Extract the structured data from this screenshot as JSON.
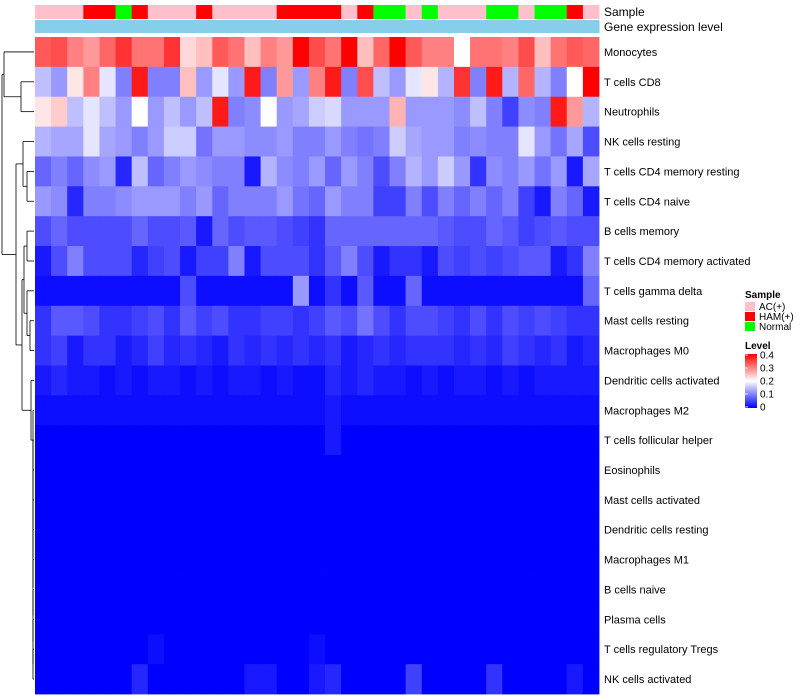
{
  "chart_data": {
    "type": "heatmap",
    "title": "",
    "rows": [
      "Monocytes",
      "T cells CD8",
      "Neutrophils",
      "NK cells resting",
      "T cells CD4 memory resting",
      "T cells CD4 naive",
      "B cells memory",
      "T cells CD4 memory activated",
      "T cells gamma delta",
      "Mast cells resting",
      "Macrophages M0",
      "Dendritic cells activated",
      "Macrophages M2",
      "T cells follicular helper",
      "Eosinophils",
      "Mast cells activated",
      "Dendritic cells resting",
      "Macrophages M1",
      "B cells naive",
      "Plasma cells",
      "T cells regulatory  Tregs",
      "NK cells activated"
    ],
    "column_annotation": {
      "sample_label": "Sample",
      "expression_label": "Gene expression level",
      "groups": [
        "AC(+)",
        "AC(+)",
        "AC(+)",
        "HAM(+)",
        "HAM(+)",
        "Normal",
        "HAM(+)",
        "AC(+)",
        "AC(+)",
        "AC(+)",
        "HAM(+)",
        "AC(+)",
        "AC(+)",
        "AC(+)",
        "AC(+)",
        "HAM(+)",
        "HAM(+)",
        "HAM(+)",
        "HAM(+)",
        "AC(+)",
        "HAM(+)",
        "Normal",
        "Normal",
        "AC(+)",
        "Normal",
        "AC(+)",
        "AC(+)",
        "AC(+)",
        "Normal",
        "Normal",
        "AC(+)",
        "Normal",
        "Normal",
        "HAM(+)",
        "AC(+)"
      ]
    },
    "values": [
      [
        0.33,
        0.34,
        0.3,
        0.28,
        0.32,
        0.36,
        0.31,
        0.31,
        0.36,
        0.23,
        0.25,
        0.33,
        0.31,
        0.25,
        0.3,
        0.28,
        0.4,
        0.34,
        0.31,
        0.4,
        0.25,
        0.32,
        0.4,
        0.33,
        0.3,
        0.3,
        0.2,
        0.31,
        0.31,
        0.3,
        0.34,
        0.25,
        0.31,
        0.33,
        0.32
      ],
      [
        0.15,
        0.12,
        0.22,
        0.3,
        0.18,
        0.1,
        0.38,
        0.1,
        0.1,
        0.25,
        0.12,
        0.18,
        0.12,
        0.38,
        0.1,
        0.28,
        0.12,
        0.3,
        0.38,
        0.1,
        0.34,
        0.15,
        0.12,
        0.18,
        0.22,
        0.14,
        0.36,
        0.1,
        0.38,
        0.14,
        0.32,
        0.14,
        0.1,
        0.2,
        0.4
      ],
      [
        0.22,
        0.24,
        0.15,
        0.18,
        0.15,
        0.12,
        0.2,
        0.12,
        0.15,
        0.12,
        0.15,
        0.38,
        0.1,
        0.11,
        0.2,
        0.12,
        0.13,
        0.16,
        0.17,
        0.12,
        0.12,
        0.12,
        0.26,
        0.12,
        0.12,
        0.12,
        0.11,
        0.15,
        0.1,
        0.05,
        0.11,
        0.1,
        0.38,
        0.28,
        0.14
      ],
      [
        0.14,
        0.13,
        0.13,
        0.18,
        0.13,
        0.12,
        0.1,
        0.12,
        0.16,
        0.16,
        0.09,
        0.12,
        0.12,
        0.11,
        0.11,
        0.12,
        0.1,
        0.1,
        0.12,
        0.1,
        0.09,
        0.1,
        0.16,
        0.13,
        0.12,
        0.12,
        0.1,
        0.11,
        0.1,
        0.1,
        0.18,
        0.12,
        0.09,
        0.13,
        0.06
      ],
      [
        0.08,
        0.1,
        0.08,
        0.11,
        0.12,
        0.03,
        0.15,
        0.08,
        0.1,
        0.12,
        0.11,
        0.1,
        0.1,
        0.02,
        0.14,
        0.11,
        0.1,
        0.12,
        0.08,
        0.12,
        0.1,
        0.06,
        0.1,
        0.14,
        0.12,
        0.16,
        0.12,
        0.04,
        0.11,
        0.1,
        0.12,
        0.09,
        0.12,
        0.02,
        0.13
      ],
      [
        0.12,
        0.11,
        0.03,
        0.1,
        0.1,
        0.11,
        0.12,
        0.12,
        0.12,
        0.1,
        0.12,
        0.08,
        0.1,
        0.1,
        0.1,
        0.12,
        0.09,
        0.08,
        0.12,
        0.1,
        0.1,
        0.05,
        0.05,
        0.1,
        0.06,
        0.1,
        0.08,
        0.1,
        0.08,
        0.1,
        0.05,
        0.02,
        0.1,
        0.08,
        0.02
      ],
      [
        0.06,
        0.08,
        0.06,
        0.06,
        0.06,
        0.06,
        0.08,
        0.06,
        0.06,
        0.07,
        0.02,
        0.08,
        0.06,
        0.07,
        0.07,
        0.06,
        0.05,
        0.04,
        0.08,
        0.08,
        0.08,
        0.08,
        0.08,
        0.08,
        0.08,
        0.07,
        0.06,
        0.06,
        0.08,
        0.07,
        0.05,
        0.06,
        0.07,
        0.06,
        0.06
      ],
      [
        0.02,
        0.06,
        0.1,
        0.06,
        0.06,
        0.06,
        0.03,
        0.05,
        0.06,
        0.02,
        0.05,
        0.05,
        0.1,
        0.02,
        0.06,
        0.06,
        0.06,
        0.04,
        0.07,
        0.1,
        0.06,
        0.02,
        0.04,
        0.04,
        0.02,
        0.06,
        0.05,
        0.06,
        0.05,
        0.06,
        0.07,
        0.07,
        0.02,
        0.04,
        0.1
      ],
      [
        0.01,
        0.01,
        0.01,
        0.01,
        0.01,
        0.01,
        0.01,
        0.01,
        0.01,
        0.06,
        0.01,
        0.01,
        0.01,
        0.01,
        0.01,
        0.01,
        0.12,
        0.01,
        0.04,
        0.01,
        0.07,
        0.01,
        0.01,
        0.08,
        0.01,
        0.01,
        0.01,
        0.01,
        0.01,
        0.01,
        0.01,
        0.01,
        0.01,
        0.01,
        0.08
      ],
      [
        0.04,
        0.07,
        0.07,
        0.06,
        0.04,
        0.04,
        0.05,
        0.06,
        0.04,
        0.07,
        0.05,
        0.06,
        0.04,
        0.04,
        0.05,
        0.05,
        0.04,
        0.05,
        0.07,
        0.06,
        0.09,
        0.06,
        0.04,
        0.06,
        0.06,
        0.05,
        0.04,
        0.06,
        0.04,
        0.06,
        0.05,
        0.06,
        0.05,
        0.04,
        0.04
      ],
      [
        0.04,
        0.05,
        0.02,
        0.04,
        0.04,
        0.02,
        0.03,
        0.05,
        0.03,
        0.04,
        0.03,
        0.02,
        0.04,
        0.03,
        0.04,
        0.03,
        0.04,
        0.03,
        0.04,
        0.02,
        0.03,
        0.04,
        0.03,
        0.04,
        0.04,
        0.04,
        0.03,
        0.04,
        0.03,
        0.05,
        0.04,
        0.03,
        0.04,
        0.02,
        0.03
      ],
      [
        0.02,
        0.03,
        0.02,
        0.02,
        0.01,
        0.02,
        0.01,
        0.02,
        0.02,
        0.01,
        0.02,
        0.01,
        0.02,
        0.02,
        0.01,
        0.02,
        0.01,
        0.01,
        0.03,
        0.02,
        0.03,
        0.02,
        0.02,
        0.01,
        0.02,
        0.01,
        0.02,
        0.02,
        0.01,
        0.02,
        0.01,
        0.02,
        0.02,
        0.02,
        0.02
      ],
      [
        0.01,
        0.01,
        0.01,
        0.01,
        0.01,
        0.01,
        0.01,
        0.01,
        0.01,
        0.01,
        0.01,
        0.01,
        0.01,
        0.01,
        0.01,
        0.01,
        0.01,
        0.01,
        0.02,
        0.01,
        0.01,
        0.01,
        0.01,
        0.01,
        0.01,
        0.01,
        0.01,
        0.01,
        0.01,
        0.01,
        0.01,
        0.01,
        0.01,
        0.01,
        0.01
      ],
      [
        0.0,
        0.0,
        0.0,
        0.0,
        0.0,
        0.0,
        0.0,
        0.0,
        0.0,
        0.0,
        0.0,
        0.0,
        0.0,
        0.0,
        0.0,
        0.0,
        0.0,
        0.0,
        0.02,
        0.0,
        0.0,
        0.0,
        0.0,
        0.0,
        0.0,
        0.0,
        0.0,
        0.0,
        0.0,
        0.0,
        0.0,
        0.0,
        0.0,
        0.0,
        0.0
      ],
      [
        0.0,
        0.0,
        0.0,
        0.0,
        0.0,
        0.0,
        0.0,
        0.0,
        0.0,
        0.0,
        0.0,
        0.0,
        0.0,
        0.0,
        0.0,
        0.0,
        0.0,
        0.0,
        0.0,
        0.0,
        0.0,
        0.0,
        0.0,
        0.0,
        0.0,
        0.0,
        0.0,
        0.0,
        0.0,
        0.0,
        0.0,
        0.0,
        0.0,
        0.0,
        0.0
      ],
      [
        0.0,
        0.0,
        0.0,
        0.0,
        0.0,
        0.0,
        0.0,
        0.0,
        0.0,
        0.0,
        0.0,
        0.0,
        0.0,
        0.0,
        0.0,
        0.0,
        0.0,
        0.0,
        0.0,
        0.0,
        0.0,
        0.0,
        0.0,
        0.0,
        0.0,
        0.0,
        0.0,
        0.0,
        0.0,
        0.0,
        0.0,
        0.0,
        0.0,
        0.0,
        0.0
      ],
      [
        0.0,
        0.0,
        0.0,
        0.0,
        0.0,
        0.0,
        0.0,
        0.0,
        0.0,
        0.0,
        0.0,
        0.0,
        0.0,
        0.0,
        0.0,
        0.0,
        0.0,
        0.0,
        0.0,
        0.0,
        0.0,
        0.0,
        0.0,
        0.0,
        0.0,
        0.0,
        0.0,
        0.0,
        0.0,
        0.0,
        0.0,
        0.0,
        0.0,
        0.0,
        0.0
      ],
      [
        0.0,
        0.0,
        0.0,
        0.0,
        0.0,
        0.0,
        0.0,
        0.0,
        0.0,
        0.0,
        0.0,
        0.0,
        0.0,
        0.0,
        0.0,
        0.0,
        0.0,
        0.0,
        0.0,
        0.0,
        0.0,
        0.0,
        0.0,
        0.0,
        0.0,
        0.0,
        0.0,
        0.0,
        0.0,
        0.0,
        0.0,
        0.0,
        0.0,
        0.0,
        0.0
      ],
      [
        0.0,
        0.0,
        0.0,
        0.0,
        0.0,
        0.0,
        0.0,
        0.0,
        0.0,
        0.0,
        0.0,
        0.0,
        0.0,
        0.0,
        0.0,
        0.0,
        0.0,
        0.0,
        0.0,
        0.0,
        0.0,
        0.0,
        0.0,
        0.0,
        0.0,
        0.0,
        0.0,
        0.0,
        0.0,
        0.0,
        0.0,
        0.0,
        0.0,
        0.0,
        0.0
      ],
      [
        0.0,
        0.0,
        0.0,
        0.0,
        0.0,
        0.0,
        0.0,
        0.0,
        0.0,
        0.0,
        0.0,
        0.0,
        0.0,
        0.0,
        0.0,
        0.0,
        0.0,
        0.0,
        0.0,
        0.0,
        0.0,
        0.0,
        0.0,
        0.0,
        0.0,
        0.0,
        0.0,
        0.0,
        0.0,
        0.0,
        0.0,
        0.0,
        0.0,
        0.0,
        0.0
      ],
      [
        0.0,
        0.0,
        0.0,
        0.0,
        0.0,
        0.0,
        0.0,
        0.01,
        0.0,
        0.0,
        0.0,
        0.0,
        0.0,
        0.0,
        0.0,
        0.0,
        0.0,
        0.01,
        0.0,
        0.0,
        0.0,
        0.0,
        0.0,
        0.0,
        0.0,
        0.0,
        0.0,
        0.0,
        0.0,
        0.0,
        0.0,
        0.0,
        0.0,
        0.0,
        0.0
      ],
      [
        0.0,
        0.0,
        0.0,
        0.0,
        0.0,
        0.0,
        0.03,
        0.0,
        0.0,
        0.0,
        0.0,
        0.0,
        0.0,
        0.02,
        0.02,
        0.0,
        0.0,
        0.02,
        0.03,
        0.0,
        0.0,
        0.0,
        0.0,
        0.05,
        0.0,
        0.0,
        0.0,
        0.0,
        0.04,
        0.0,
        0.0,
        0.0,
        0.0,
        0.02,
        0.0
      ]
    ],
    "legend": {
      "sample_title": "Sample",
      "sample_entries": [
        {
          "label": "AC(+)",
          "color": "#ffc0cb"
        },
        {
          "label": "HAM(+)",
          "color": "#ff0000"
        },
        {
          "label": "Normal",
          "color": "#00ff00"
        }
      ],
      "level_title": "Level",
      "level_ticks": [
        "0.4",
        "0.3",
        "0.2",
        "0.1",
        "0"
      ],
      "level_range": [
        0,
        0.4
      ],
      "placement": "right"
    },
    "colors": {
      "low": "#0000ff",
      "mid": "#ffffff",
      "high": "#ff0000",
      "expression_bar": "#87ceeb"
    }
  }
}
